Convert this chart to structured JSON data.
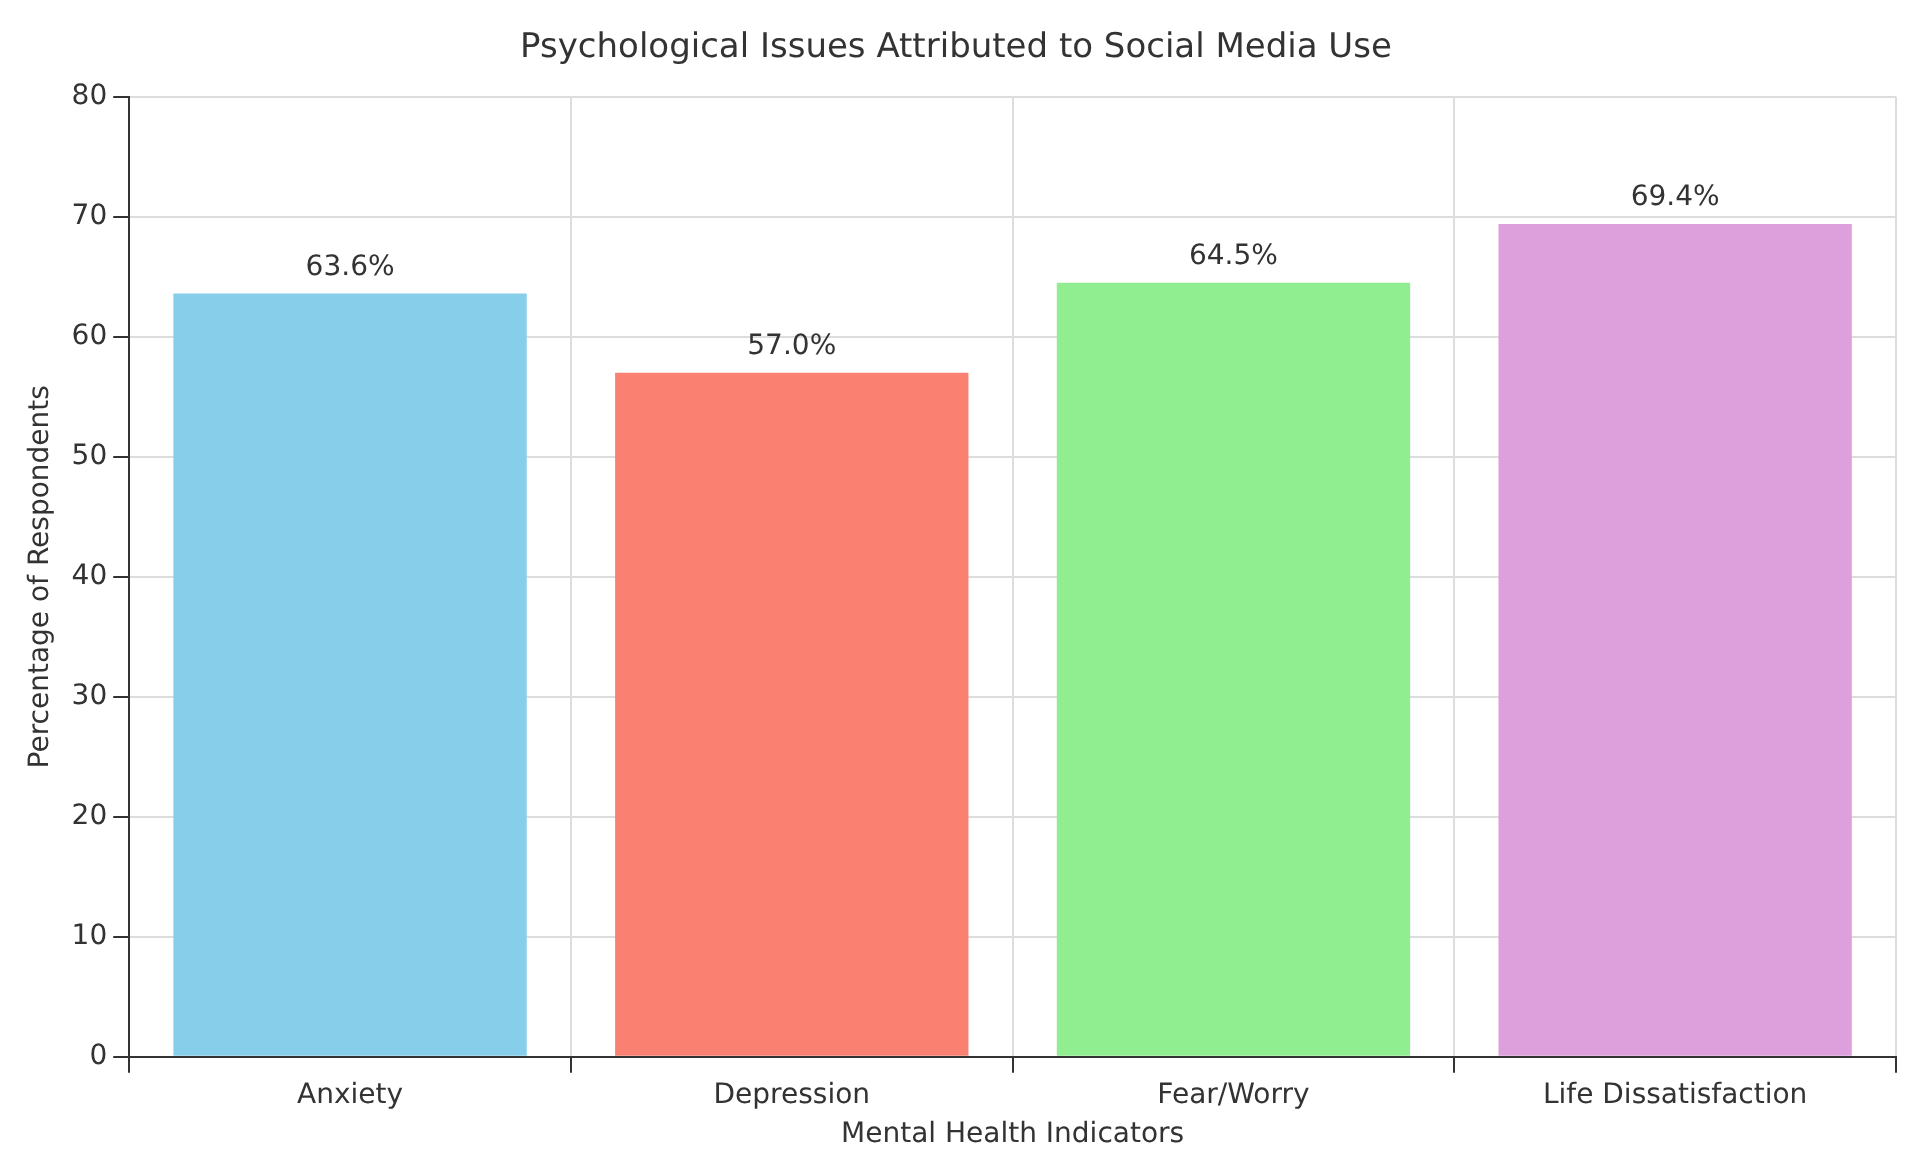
{
  "chart_data": {
    "type": "bar",
    "title": "Psychological Issues Attributed to Social Media Use",
    "xlabel": "Mental Health Indicators",
    "ylabel": "Percentage of Respondents",
    "categories": [
      "Anxiety",
      "Depression",
      "Fear/Worry",
      "Life Dissatisfaction"
    ],
    "values": [
      63.6,
      57.0,
      64.5,
      69.4
    ],
    "colors": [
      "#87ceeb",
      "#fa8072",
      "#90ee90",
      "#dda0dd"
    ],
    "value_labels": [
      "63.6%",
      "57.0%",
      "64.5%",
      "69.4%"
    ],
    "ylim": [
      0,
      80
    ],
    "yticks": [
      0,
      10,
      20,
      30,
      40,
      50,
      60,
      70,
      80
    ],
    "grid": true,
    "legend": false
  }
}
